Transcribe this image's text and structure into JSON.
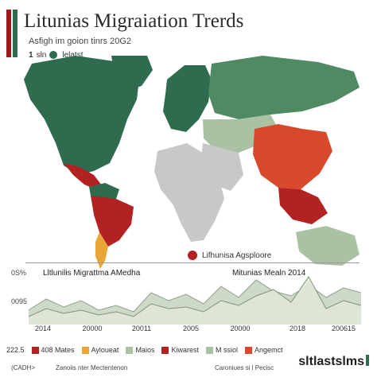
{
  "header": {
    "title": "Litunias Migraiation Trerds",
    "subtitle": "Asfigh im goion tinrs 20G2",
    "legend_mini": {
      "num": "1",
      "label": "sln",
      "label2": "lelatst"
    }
  },
  "colors": {
    "green_dark": "#2f6b4f",
    "green_mid": "#4f8a63",
    "green_light": "#a9c2a3",
    "gray": "#c8c8c8",
    "red": "#b22222",
    "orange_red": "#d8492b",
    "yellow": "#e8a637",
    "line_fill": "#c7d2bf"
  },
  "map": {
    "callout_label": "Lifhunisa Agsploore",
    "regions": [
      {
        "name": "north-america",
        "category": "green_dark"
      },
      {
        "name": "greenland",
        "category": "green_dark"
      },
      {
        "name": "central-america",
        "category": "red"
      },
      {
        "name": "south-america-north",
        "category": "green_dark"
      },
      {
        "name": "south-america-mid",
        "category": "red"
      },
      {
        "name": "south-america-south",
        "category": "yellow"
      },
      {
        "name": "europe",
        "category": "green_dark"
      },
      {
        "name": "russia",
        "category": "green_mid"
      },
      {
        "name": "central-asia",
        "category": "green_light"
      },
      {
        "name": "africa",
        "category": "gray"
      },
      {
        "name": "middle-east",
        "category": "gray"
      },
      {
        "name": "china",
        "category": "orange_red"
      },
      {
        "name": "south-east-asia",
        "category": "red"
      },
      {
        "name": "australia",
        "category": "green_light"
      }
    ]
  },
  "chart": {
    "title_left": "Lltlunilis Migrattma AMedha",
    "title_right": "Mitunias Mealn 2014",
    "ytop": "0S%",
    "ymid": "0095",
    "x_labels": [
      "2014",
      "20000",
      "20011",
      "2005",
      "20000",
      "2018",
      "200615"
    ]
  },
  "chart_data": {
    "type": "area",
    "title": "",
    "series": [
      {
        "values": [
          18,
          32,
          22,
          30,
          18,
          24,
          16,
          40,
          30,
          38,
          26,
          48,
          34,
          56,
          42,
          36,
          50,
          34,
          46,
          40
        ]
      },
      {
        "values": [
          10,
          20,
          14,
          18,
          12,
          16,
          10,
          26,
          20,
          22,
          16,
          30,
          24,
          36,
          44,
          28,
          60,
          20,
          30,
          24
        ]
      }
    ],
    "ylim": [
      0,
      70
    ],
    "grid": false
  },
  "legend": {
    "prefix": "222.5",
    "items": [
      {
        "label": "408 Mates",
        "color": "#b22222"
      },
      {
        "label": "Ayloueat",
        "color": "#e8a637"
      },
      {
        "label": "Maios",
        "color": "#a9c2a3"
      },
      {
        "label": "Kiwarest",
        "color": "#b22222"
      },
      {
        "label": "M ssiol",
        "color": "#a9c2a3"
      },
      {
        "label": "Angemct",
        "color": "#d8492b"
      }
    ]
  },
  "footer": {
    "left": "(CADH>",
    "center": "Zanoiis nter Mectentenon",
    "right": "Caroniues si l Pecisc",
    "brand": "sltlastslms"
  }
}
